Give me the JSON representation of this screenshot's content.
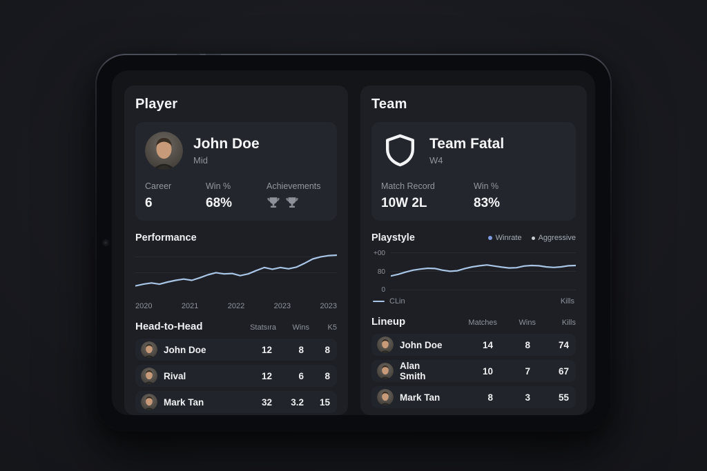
{
  "colors": {
    "chart_line": "#a9c6e6",
    "winrate_dot": "#7d9be0",
    "aggressive_dot": "#c9cdd4",
    "panel_bg": "#1d1f25",
    "card_bg": "#24262d",
    "row_bg": "#22242b"
  },
  "player_panel": {
    "title": "Player",
    "profile": {
      "name": "John Doe",
      "role": "Mid"
    },
    "stats": [
      {
        "label": "Career",
        "value": "6"
      },
      {
        "label": "Win %",
        "value": "68%"
      },
      {
        "label": "Achievements",
        "value": "2 trophies"
      }
    ],
    "head_to_head": {
      "title": "Head-to-Head",
      "columns": [
        "Statsıra",
        "Wins",
        "K5"
      ],
      "rows": [
        {
          "name": "John Doe",
          "matches": "12",
          "wins": "8",
          "kills": "8"
        },
        {
          "name": "Rival",
          "matches": "12",
          "wins": "6",
          "kills": "8"
        },
        {
          "name": "Mark Tan",
          "matches": "32",
          "wins": "3.2",
          "kills": "15"
        }
      ]
    }
  },
  "team_panel": {
    "title": "Team",
    "profile": {
      "name": "Team Fatal",
      "role": "W4"
    },
    "stats": [
      {
        "label": "Match Record",
        "value": "10W 2L"
      },
      {
        "label": "Win %",
        "value": "83%"
      }
    ],
    "lineup": {
      "title": "Lineup",
      "columns": [
        "Matches",
        "Wins",
        "Kills"
      ],
      "rows": [
        {
          "name": "John Doe",
          "matches": "14",
          "wins": "8",
          "kills": "74"
        },
        {
          "name": "Alan Smith",
          "matches": "10",
          "wins": "7",
          "kills": "67"
        },
        {
          "name": "Mark Tan",
          "matches": "8",
          "wins": "3",
          "kills": "55"
        }
      ]
    }
  },
  "chart_data": [
    {
      "type": "line",
      "title": "Performance",
      "x_tick_labels": [
        "2020",
        "2021",
        "2022",
        "2023",
        "2023"
      ],
      "series": [
        {
          "name": "Performance",
          "values": [
            20,
            24,
            27,
            24,
            29,
            33,
            36,
            33,
            39,
            46,
            51,
            48,
            49,
            44,
            48,
            56,
            63,
            59,
            63,
            60,
            64,
            73,
            83,
            88,
            91,
            92
          ]
        }
      ],
      "ylim": [
        0,
        100
      ],
      "grid": true,
      "legend_position": "none",
      "color": "#a9c6e6"
    },
    {
      "type": "line",
      "title": "Playstyle",
      "legend": [
        "Winrate",
        "Aggressive"
      ],
      "legend_position": "top-right",
      "y_tick_labels": [
        "+00",
        "80",
        "0"
      ],
      "footer_left": "CLin",
      "footer_right": "Kills",
      "series": [
        {
          "name": "Winrate",
          "values": [
            52,
            58,
            66,
            73,
            77,
            80,
            79,
            73,
            69,
            71,
            79,
            85,
            89,
            92,
            88,
            84,
            81,
            82,
            88,
            90,
            89,
            85,
            83,
            85,
            89,
            90
          ]
        }
      ],
      "ylim": [
        0,
        140
      ],
      "grid": true,
      "color": "#a9c6e6"
    }
  ]
}
